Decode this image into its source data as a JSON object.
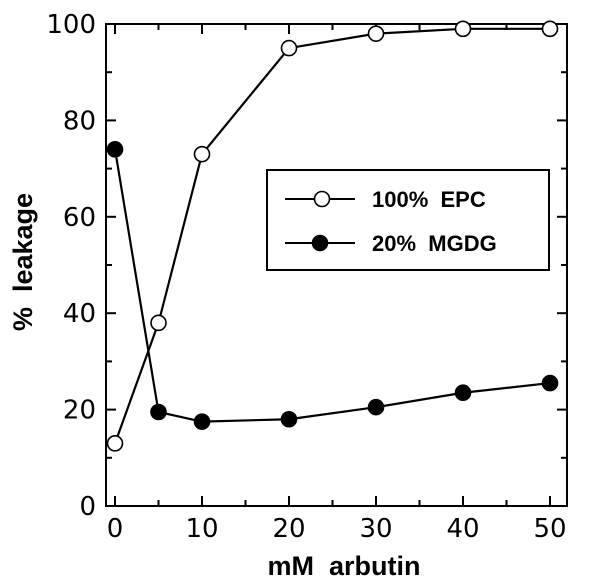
{
  "chart_data": {
    "type": "line",
    "title": "",
    "xlabel": "mM  arbutin",
    "ylabel": "%  leakage",
    "xlim": [
      0,
      55
    ],
    "ylim": [
      0,
      100
    ],
    "xticks": [
      0,
      10,
      20,
      30,
      40,
      50
    ],
    "xtick_labels": [
      "0",
      "10",
      "20",
      "30",
      "40",
      "50"
    ],
    "yticks": [
      0,
      20,
      40,
      60,
      80,
      100
    ],
    "ytick_labels": [
      "0",
      "20",
      "40",
      "60",
      "80",
      "100"
    ],
    "grid": false,
    "legend_position": "center-right",
    "series": [
      {
        "name": "100%  EPC",
        "marker": "open-circle",
        "color": "#000000",
        "x": [
          0,
          5,
          10,
          20,
          30,
          40,
          50
        ],
        "y": [
          13,
          38,
          73,
          95,
          98,
          99,
          99
        ]
      },
      {
        "name": "20%  MGDG",
        "marker": "filled-circle",
        "color": "#000000",
        "x": [
          0,
          5,
          10,
          20,
          30,
          40,
          50
        ],
        "y": [
          74,
          19.5,
          17.5,
          18,
          20.5,
          23.5,
          25.5
        ]
      }
    ]
  }
}
